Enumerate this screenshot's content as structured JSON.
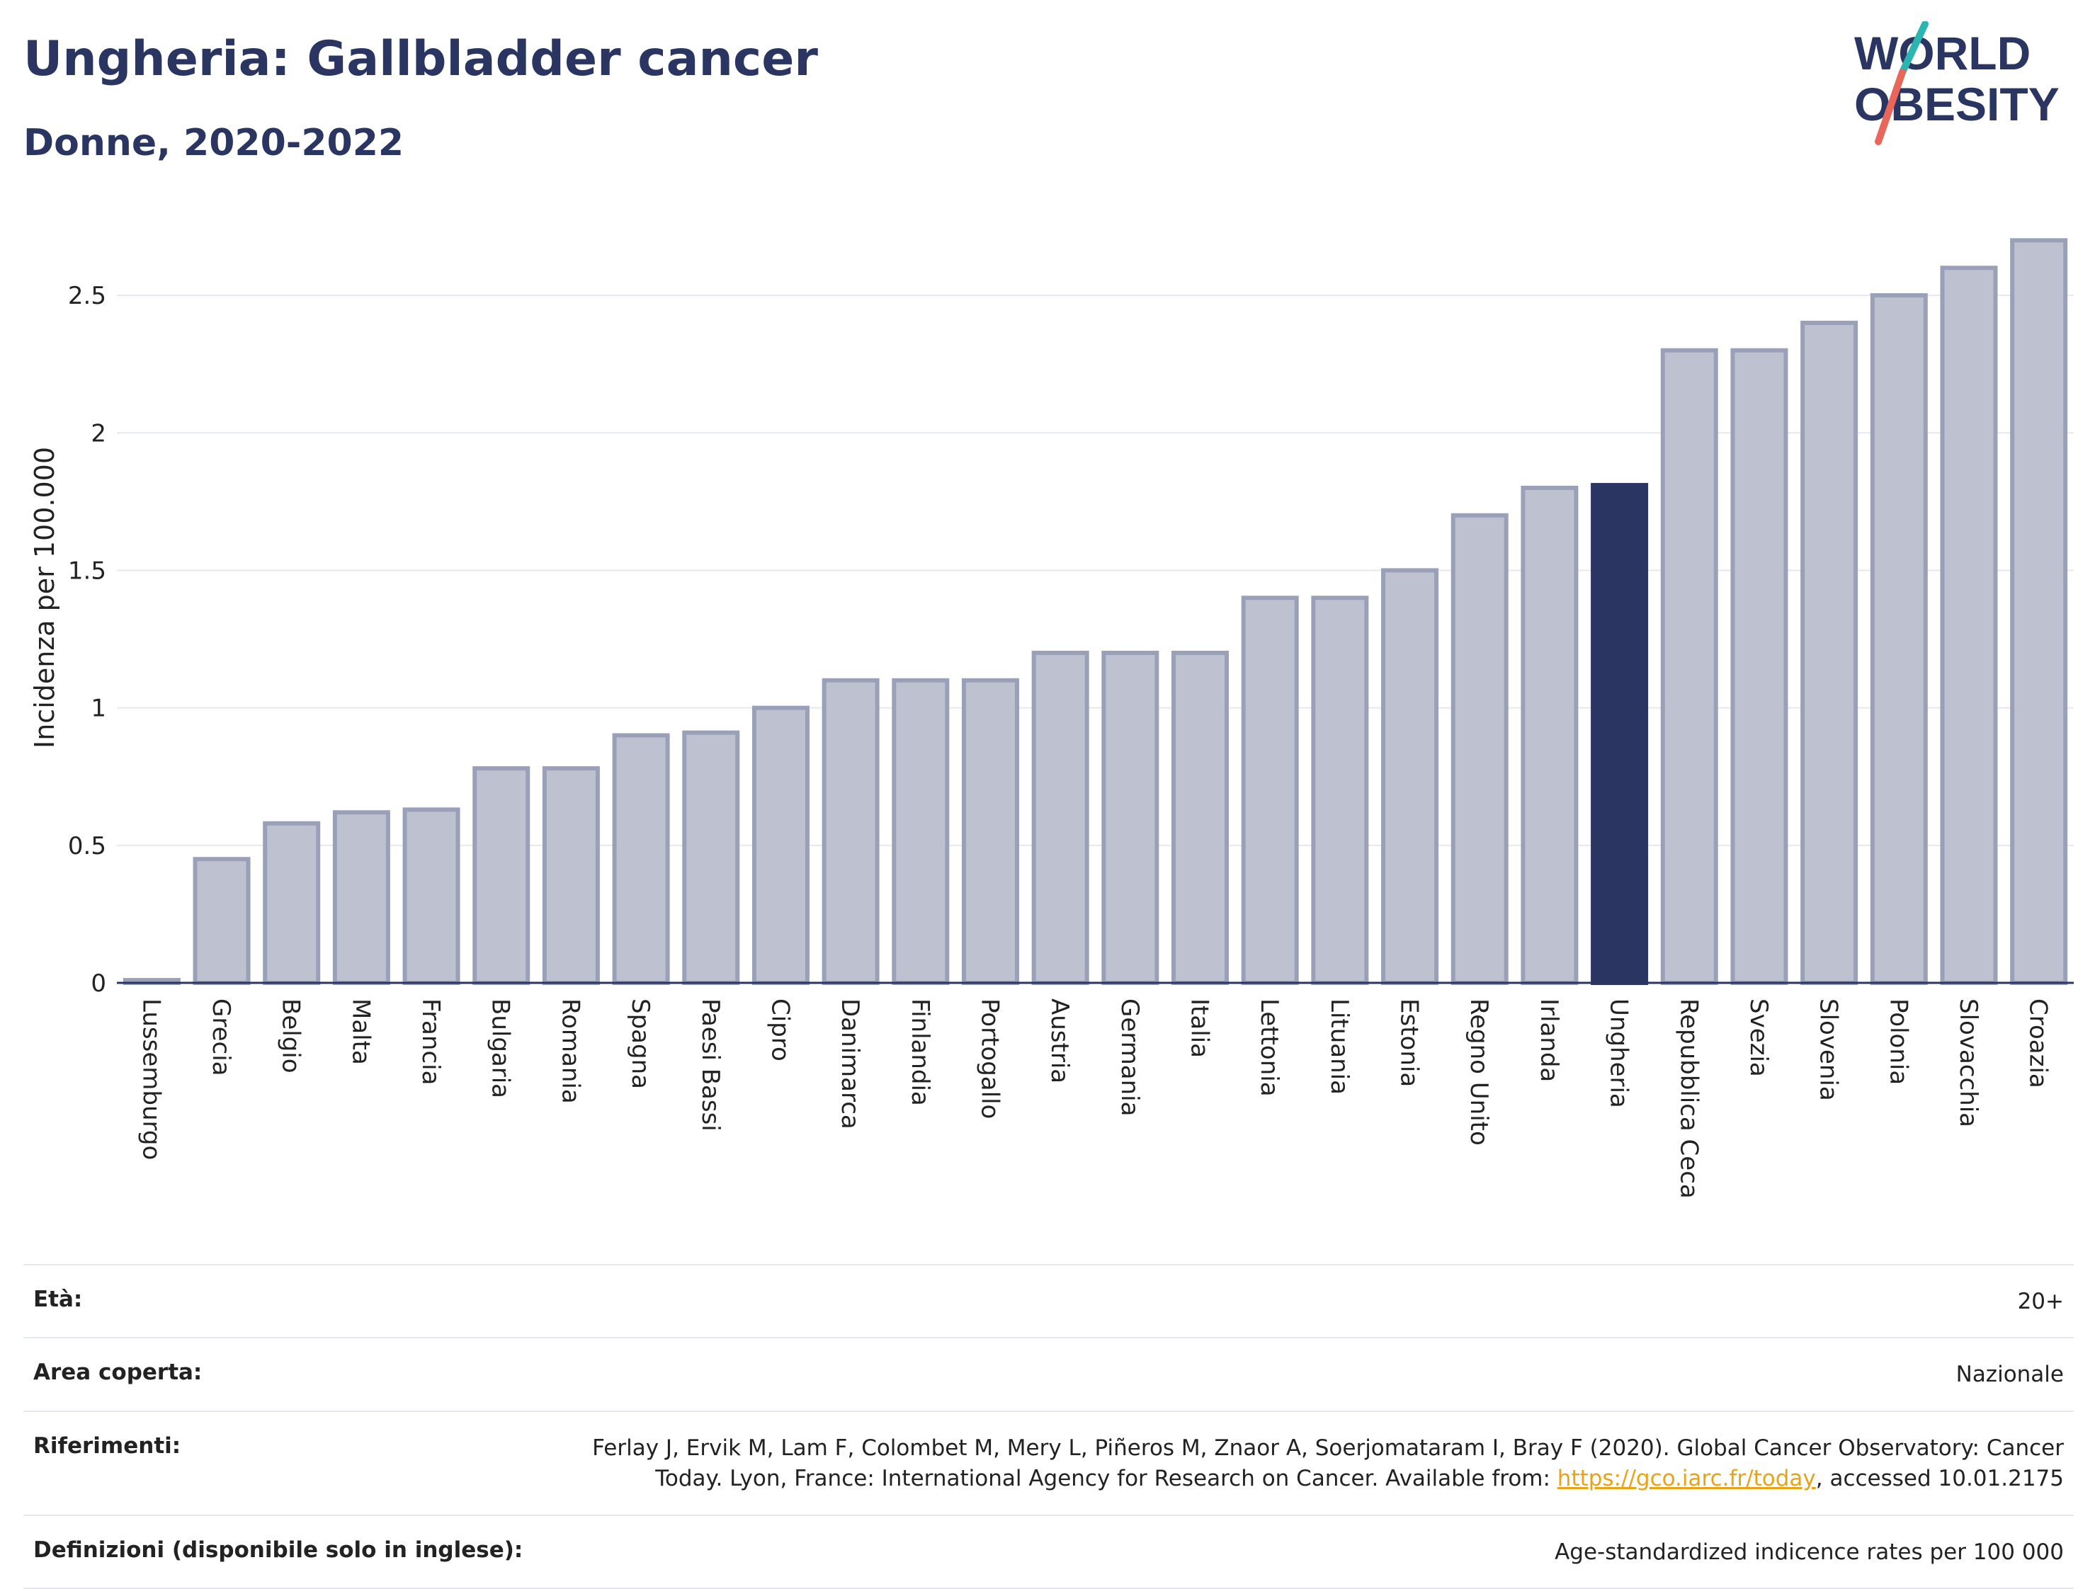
{
  "header": {
    "title": "Ungheria: Gallbladder cancer",
    "subtitle": "Donne, 2020-2022"
  },
  "logo": {
    "line1": "WORLD",
    "line2": "OBESITY",
    "accent_colors": [
      "#2bb5b0",
      "#e8675a"
    ]
  },
  "colors": {
    "bar_fill": "#bec2d0",
    "bar_stroke": "#9aa0b8",
    "highlight": "#2b3561",
    "grid": "#e6e8ef",
    "axis": "#2b3561"
  },
  "chart_data": {
    "type": "bar",
    "xlabel": "",
    "ylabel": "Incidenza per 100.000",
    "ylim": [
      0,
      2.75
    ],
    "yticks": [
      0,
      0.5,
      1,
      1.5,
      2,
      2.5
    ],
    "ytick_labels": [
      "0",
      "0.5",
      "1",
      "1.5",
      "2",
      "2.5"
    ],
    "grid": true,
    "highlight_category": "Ungheria",
    "categories": [
      "Lussemburgo",
      "Grecia",
      "Belgio",
      "Malta",
      "Francia",
      "Bulgaria",
      "Romania",
      "Spagna",
      "Paesi Bassi",
      "Cipro",
      "Danimarca",
      "Finlandia",
      "Portogallo",
      "Austria",
      "Germania",
      "Italia",
      "Lettonia",
      "Lituania",
      "Estonia",
      "Regno Unito",
      "Irlanda",
      "Ungheria",
      "Repubblica Ceca",
      "Svezia",
      "Slovenia",
      "Polonia",
      "Slovacchia",
      "Croazia"
    ],
    "values": [
      0.01,
      0.45,
      0.58,
      0.62,
      0.63,
      0.78,
      0.78,
      0.9,
      0.91,
      1.0,
      1.1,
      1.1,
      1.1,
      1.2,
      1.2,
      1.2,
      1.4,
      1.4,
      1.5,
      1.7,
      1.8,
      1.81,
      2.3,
      2.3,
      2.4,
      2.5,
      2.6,
      2.7
    ]
  },
  "meta": {
    "age_label": "Età:",
    "age_value": "20+",
    "area_label": "Area coperta:",
    "area_value": "Nazionale",
    "ref_label": "Riferimenti:",
    "ref_text_1": "Ferlay J, Ervik M, Lam F, Colombet M, Mery L, Piñeros M, Znaor A, Soerjomataram I, Bray F (2020). Global Cancer Observatory: Cancer",
    "ref_text_2": "Today. Lyon, France: International Agency for Research on Cancer. Available from: ",
    "ref_link": "https://gco.iarc.fr/today",
    "ref_text_3": ", accessed 10.01.2175",
    "def_label": "Definizioni (disponibile solo in inglese):",
    "def_value": "Age-standardized indicence rates per 100 000"
  }
}
